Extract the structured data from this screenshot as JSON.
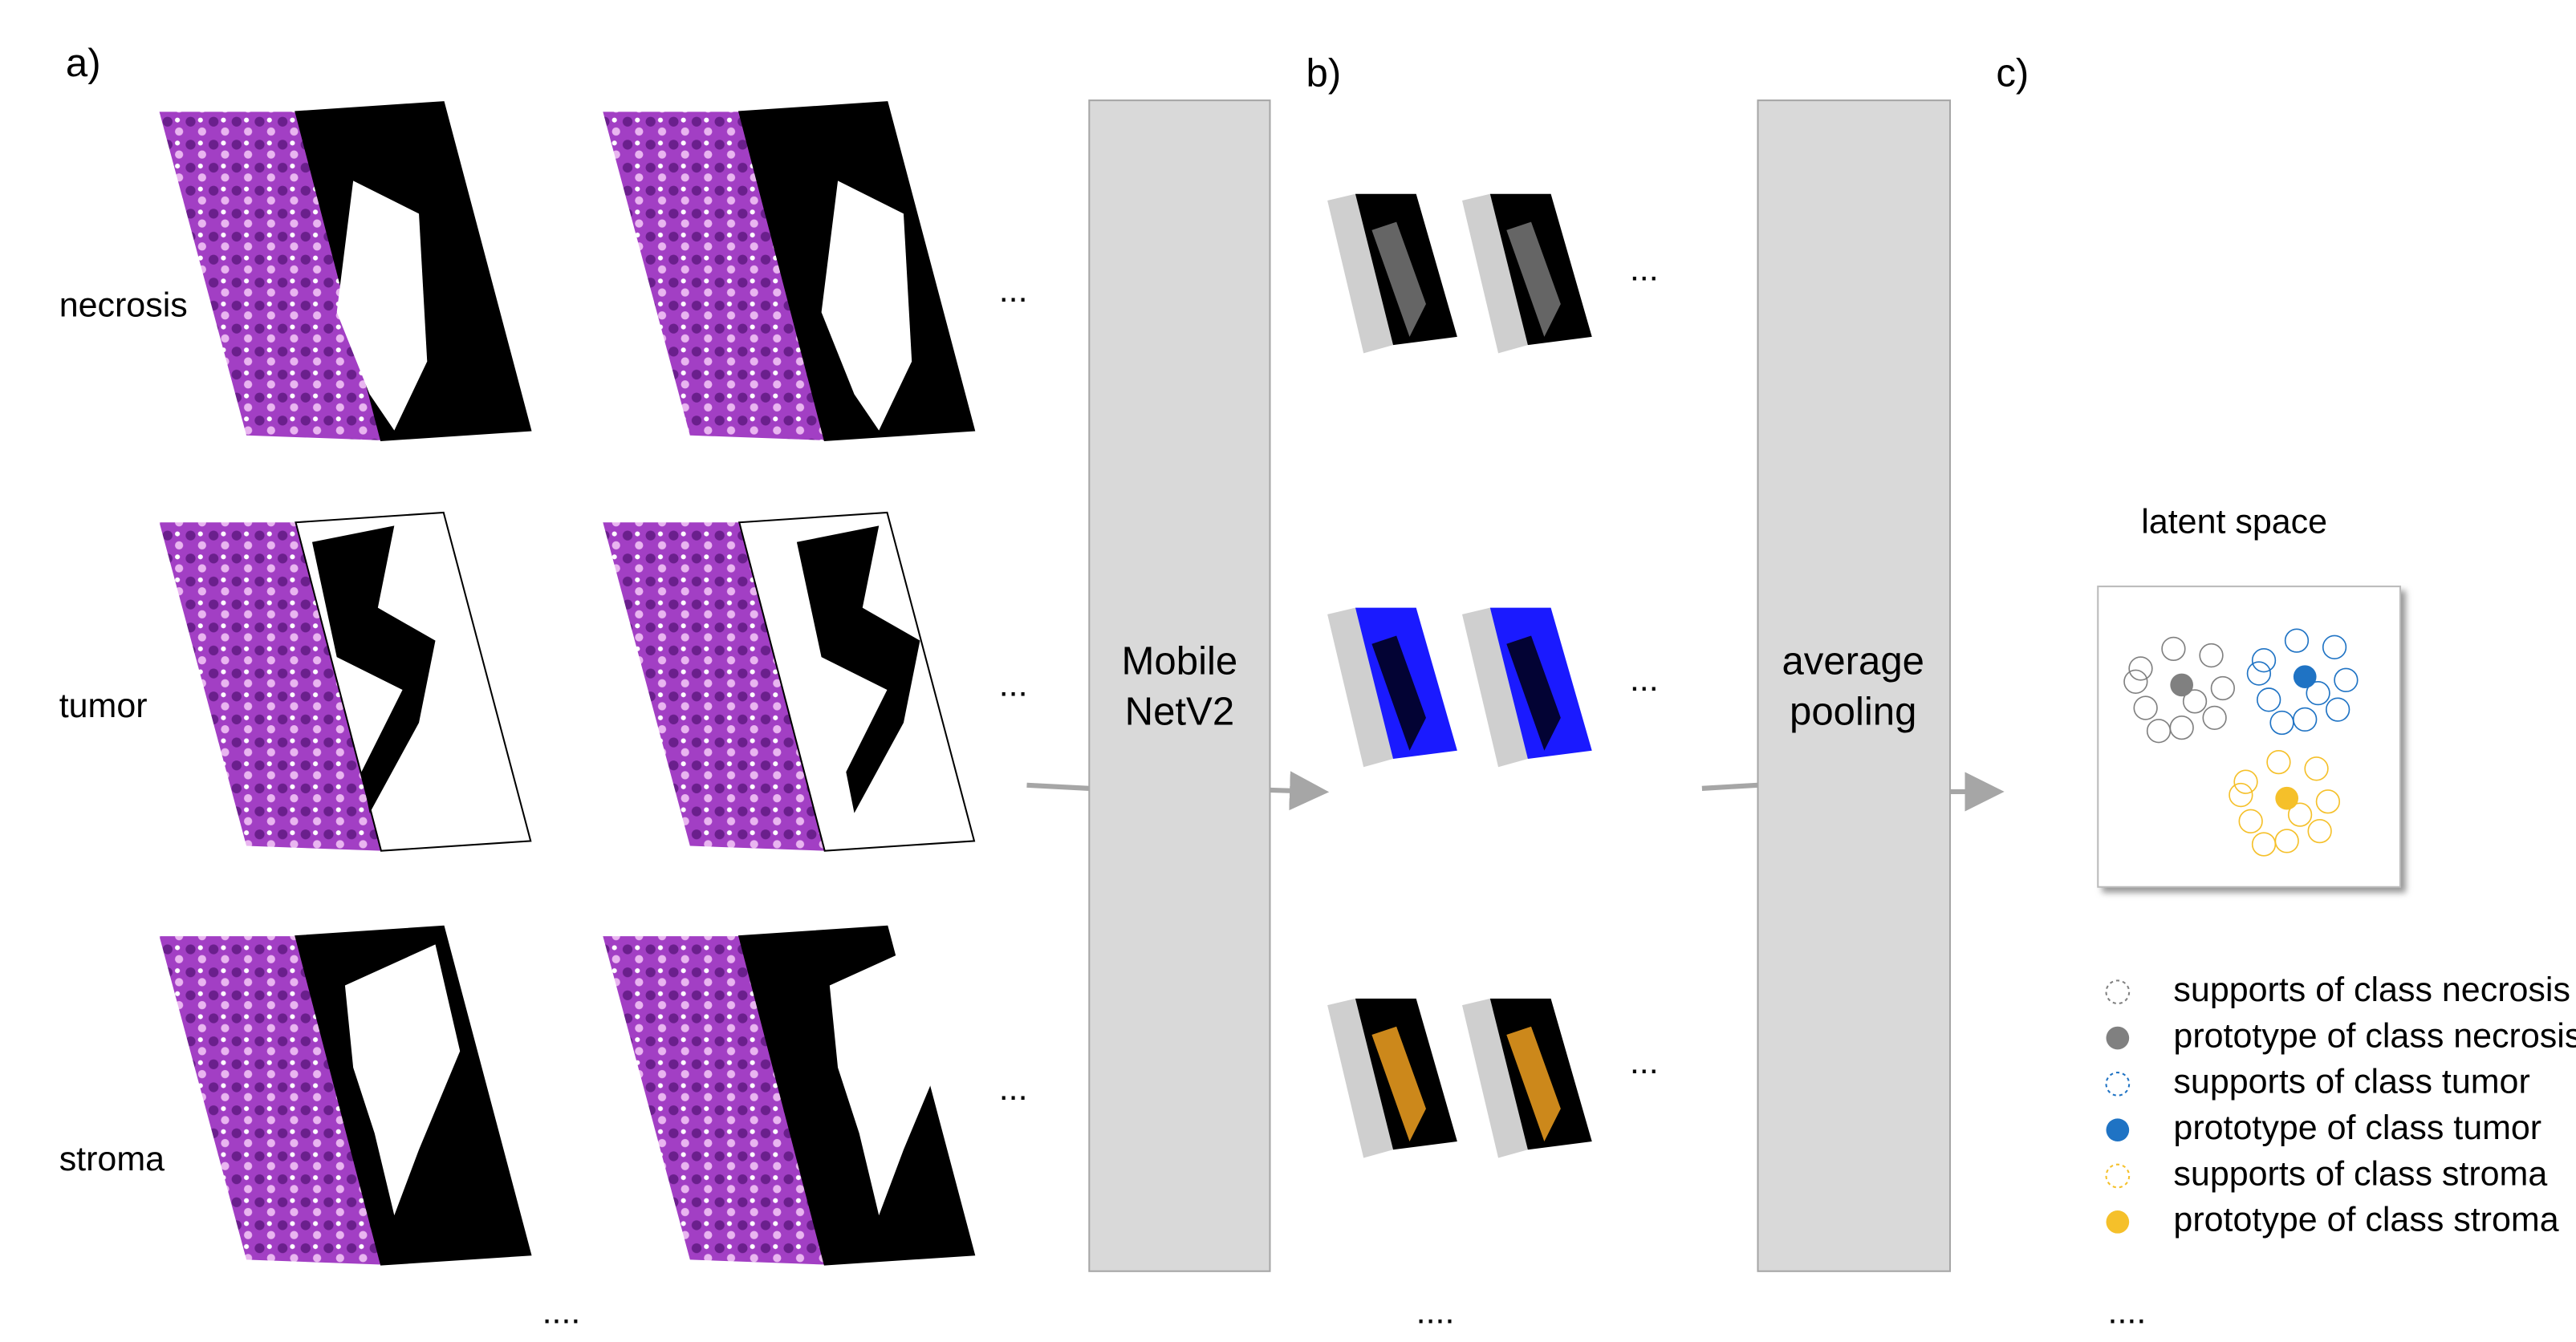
{
  "panels": {
    "a": "a)",
    "b": "b)",
    "c": "c)"
  },
  "classes": [
    "necrosis",
    "tumor",
    "stroma"
  ],
  "a_ellipses": [
    "...",
    "...",
    "..."
  ],
  "b_ellipses": [
    "...",
    "...",
    "..."
  ],
  "bottom_ellipses": [
    "....",
    "....",
    "...."
  ],
  "blocks": {
    "mobilenet": [
      "Mobile",
      "NetV2"
    ],
    "pooling": [
      "average",
      "pooling"
    ]
  },
  "latent_space": {
    "title": "latent space"
  },
  "legend": [
    {
      "label": "supports of class necrosis",
      "color": "#808080",
      "kind": "support"
    },
    {
      "label": "prototype of class necrosis",
      "color": "#808080",
      "kind": "prototype"
    },
    {
      "label": "supports of class tumor",
      "color": "#1f73c4",
      "kind": "support"
    },
    {
      "label": "prototype of class tumor",
      "color": "#1f73c4",
      "kind": "prototype"
    },
    {
      "label": "supports of class stroma",
      "color": "#f5c02a",
      "kind": "support"
    },
    {
      "label": "prototype of class stroma",
      "color": "#f5c02a",
      "kind": "prototype"
    }
  ]
}
